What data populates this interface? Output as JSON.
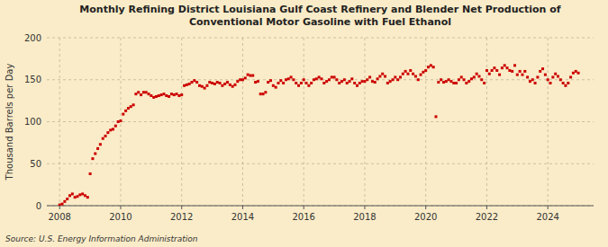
{
  "chart_data": {
    "type": "scatter",
    "title": "Monthly Refining District Louisiana Gulf Coast Refinery and Blender Net Production of\nConventional Motor Gasoline with Fuel Ethanol",
    "y_label": "Thousand Barrels per Day",
    "annotations": [
      "Source: U.S. Energy Information Administration"
    ],
    "color": "#cc0000",
    "marker": "square",
    "grid": true,
    "xlim": [
      2007.58,
      2025.5
    ],
    "xticks": [
      2008,
      2010,
      2012,
      2014,
      2016,
      2018,
      2020,
      2022,
      2024
    ],
    "ylim": [
      0,
      200
    ],
    "yticks": [
      0,
      50,
      100,
      150,
      200
    ],
    "x": [
      2008.0,
      2008.083,
      2008.167,
      2008.25,
      2008.333,
      2008.417,
      2008.5,
      2008.583,
      2008.667,
      2008.75,
      2008.833,
      2008.917,
      2009.0,
      2009.083,
      2009.167,
      2009.25,
      2009.333,
      2009.417,
      2009.5,
      2009.583,
      2009.667,
      2009.75,
      2009.833,
      2009.917,
      2010.0,
      2010.083,
      2010.167,
      2010.25,
      2010.333,
      2010.417,
      2010.5,
      2010.583,
      2010.667,
      2010.75,
      2010.833,
      2010.917,
      2011.0,
      2011.083,
      2011.167,
      2011.25,
      2011.333,
      2011.417,
      2011.5,
      2011.583,
      2011.667,
      2011.75,
      2011.833,
      2011.917,
      2012.0,
      2012.083,
      2012.167,
      2012.25,
      2012.333,
      2012.417,
      2012.5,
      2012.583,
      2012.667,
      2012.75,
      2012.833,
      2012.917,
      2013.0,
      2013.083,
      2013.167,
      2013.25,
      2013.333,
      2013.417,
      2013.5,
      2013.583,
      2013.667,
      2013.75,
      2013.833,
      2013.917,
      2014.0,
      2014.083,
      2014.167,
      2014.25,
      2014.333,
      2014.417,
      2014.5,
      2014.583,
      2014.667,
      2014.75,
      2014.833,
      2014.917,
      2015.0,
      2015.083,
      2015.167,
      2015.25,
      2015.333,
      2015.417,
      2015.5,
      2015.583,
      2015.667,
      2015.75,
      2015.833,
      2015.917,
      2016.0,
      2016.083,
      2016.167,
      2016.25,
      2016.333,
      2016.417,
      2016.5,
      2016.583,
      2016.667,
      2016.75,
      2016.833,
      2016.917,
      2017.0,
      2017.083,
      2017.167,
      2017.25,
      2017.333,
      2017.417,
      2017.5,
      2017.583,
      2017.667,
      2017.75,
      2017.833,
      2017.917,
      2018.0,
      2018.083,
      2018.167,
      2018.25,
      2018.333,
      2018.417,
      2018.5,
      2018.583,
      2018.667,
      2018.75,
      2018.833,
      2018.917,
      2019.0,
      2019.083,
      2019.167,
      2019.25,
      2019.333,
      2019.417,
      2019.5,
      2019.583,
      2019.667,
      2019.75,
      2019.833,
      2019.917,
      2020.0,
      2020.083,
      2020.167,
      2020.25,
      2020.333,
      2020.417,
      2020.5,
      2020.583,
      2020.667,
      2020.75,
      2020.833,
      2020.917,
      2021.0,
      2021.083,
      2021.167,
      2021.25,
      2021.333,
      2021.417,
      2021.5,
      2021.583,
      2021.667,
      2021.75,
      2021.833,
      2021.917,
      2022.0,
      2022.083,
      2022.167,
      2022.25,
      2022.333,
      2022.417,
      2022.5,
      2022.583,
      2022.667,
      2022.75,
      2022.833,
      2022.917,
      2023.0,
      2023.083,
      2023.167,
      2023.25,
      2023.333,
      2023.417,
      2023.5,
      2023.583,
      2023.667,
      2023.75,
      2023.833,
      2023.917,
      2024.0,
      2024.083,
      2024.167,
      2024.25,
      2024.333,
      2024.417,
      2024.5,
      2024.583,
      2024.667,
      2024.75,
      2024.833,
      2024.917,
      2025.0
    ],
    "values": [
      1,
      2,
      5,
      8,
      12,
      14,
      10,
      11,
      13,
      14,
      12,
      10,
      38,
      56,
      62,
      68,
      73,
      80,
      83,
      87,
      90,
      91,
      95,
      100,
      101,
      109,
      113,
      116,
      118,
      120,
      133,
      135,
      132,
      135,
      135,
      133,
      131,
      129,
      130,
      131,
      132,
      133,
      131,
      130,
      133,
      132,
      133,
      131,
      132,
      143,
      144,
      145,
      147,
      149,
      147,
      143,
      142,
      140,
      143,
      147,
      146,
      145,
      147,
      146,
      143,
      145,
      147,
      144,
      142,
      144,
      148,
      150,
      150,
      152,
      156,
      155,
      155,
      147,
      148,
      133,
      133,
      135,
      147,
      149,
      143,
      141,
      146,
      149,
      146,
      150,
      151,
      153,
      150,
      146,
      143,
      146,
      150,
      146,
      143,
      146,
      150,
      151,
      153,
      151,
      146,
      148,
      150,
      153,
      153,
      150,
      146,
      148,
      150,
      146,
      148,
      151,
      146,
      143,
      146,
      148,
      148,
      150,
      153,
      148,
      147,
      151,
      154,
      157,
      154,
      146,
      148,
      150,
      153,
      150,
      153,
      157,
      160,
      157,
      161,
      157,
      154,
      150,
      156,
      159,
      161,
      165,
      167,
      165,
      106,
      147,
      150,
      147,
      148,
      150,
      148,
      146,
      146,
      150,
      153,
      150,
      146,
      148,
      151,
      153,
      157,
      154,
      150,
      146,
      161,
      157,
      161,
      164,
      161,
      156,
      164,
      167,
      164,
      161,
      160,
      167,
      156,
      160,
      156,
      160,
      153,
      148,
      150,
      146,
      153,
      160,
      163,
      156,
      150,
      146,
      153,
      157,
      154,
      150,
      146,
      143,
      146,
      153,
      158,
      160,
      158
    ]
  }
}
